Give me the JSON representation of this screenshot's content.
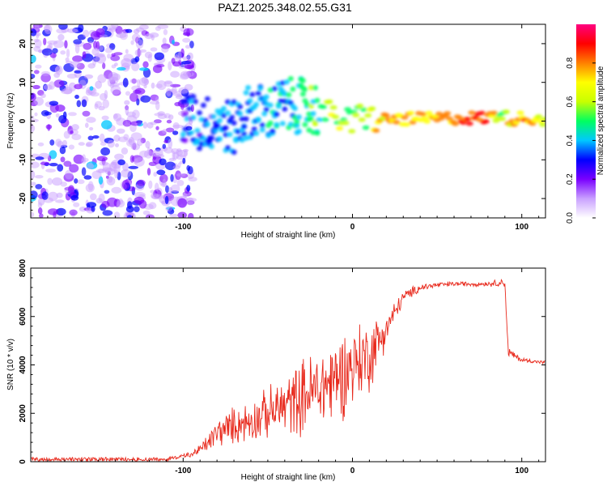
{
  "title": "PAZ1.2025.348.02.55.G31",
  "chart_data": [
    {
      "type": "heatmap",
      "description_kind": "spectrogram",
      "xlabel": "Height of straight line (km)",
      "ylabel": "Frequency (Hz)",
      "xlim": [
        -190,
        114
      ],
      "ylim": [
        -25,
        25
      ],
      "xticks": [
        -100,
        0,
        100
      ],
      "xtick_labels": [
        "-100",
        "0",
        "100"
      ],
      "yticks": [
        -20,
        -10,
        0,
        10,
        20
      ],
      "ytick_labels": [
        "-20",
        "-10",
        "0",
        "10",
        "20"
      ],
      "colorbar": {
        "label": "Normalized spectral amplitude",
        "range": [
          0,
          1
        ],
        "ticks": [
          0,
          0.2,
          0.4,
          0.6,
          0.8
        ],
        "tick_labels": [
          "0.0",
          "0.2",
          "0.4",
          "0.6",
          "0.8"
        ],
        "colors": [
          "#ffffff",
          "#c9a0ff",
          "#7a00ff",
          "#0000ff",
          "#00c8ff",
          "#00ff60",
          "#c8ff00",
          "#ffff00",
          "#ff8000",
          "#ff0000",
          "#ff0080"
        ]
      },
      "noise_region_x": [
        -190,
        -100
      ],
      "signal_track": {
        "x": [
          -100,
          -90,
          -80,
          -70,
          -60,
          -50,
          -40,
          -30,
          -20,
          -15,
          -10,
          -5,
          0,
          5,
          10,
          15,
          20,
          40,
          60,
          80,
          88,
          92,
          100,
          114
        ],
        "freq": [
          1,
          -1,
          0,
          -2,
          3,
          2,
          4,
          4,
          3,
          2,
          1,
          0.5,
          -1,
          2,
          1,
          0,
          0.5,
          0.5,
          0.8,
          0.8,
          2,
          0.5,
          0.8,
          0.5
        ],
        "amplitude": [
          0.3,
          0.3,
          0.35,
          0.35,
          0.35,
          0.4,
          0.4,
          0.45,
          0.5,
          0.55,
          0.6,
          0.6,
          0.55,
          0.6,
          0.65,
          0.7,
          0.75,
          0.75,
          0.8,
          0.85,
          0.5,
          0.7,
          0.8,
          0.6
        ]
      }
    },
    {
      "type": "line",
      "xlabel": "Height of straight line (km)",
      "ylabel": "SNR (10 * v/v)",
      "xlim": [
        -190,
        114
      ],
      "ylim": [
        0,
        8000
      ],
      "xticks": [
        -100,
        0,
        100
      ],
      "xtick_labels": [
        "-100",
        "0",
        "100"
      ],
      "yticks": [
        0,
        2000,
        4000,
        6000,
        8000
      ],
      "ytick_labels": [
        "0",
        "2000",
        "4000",
        "6000",
        "8000"
      ],
      "color": "#e8291c",
      "x": [
        -190,
        -150,
        -110,
        -95,
        -90,
        -85,
        -80,
        -70,
        -60,
        -50,
        -40,
        -30,
        -20,
        -10,
        0,
        10,
        20,
        30,
        40,
        50,
        60,
        70,
        80,
        88,
        90,
        92,
        95,
        100,
        114
      ],
      "y": [
        100,
        100,
        100,
        300,
        500,
        800,
        1200,
        1500,
        1700,
        2000,
        2300,
        2700,
        3000,
        3400,
        4000,
        4400,
        5500,
        6800,
        7200,
        7300,
        7350,
        7350,
        7350,
        7400,
        7400,
        4500,
        4400,
        4200,
        4100
      ],
      "noise_amplitude": [
        0,
        0,
        0,
        150,
        300,
        450,
        700,
        900,
        1000,
        1200,
        1500,
        1800,
        2000,
        2200,
        2000,
        1800,
        800,
        300,
        200,
        150,
        120,
        120,
        120,
        200,
        200,
        300,
        200,
        120,
        80
      ]
    }
  ]
}
